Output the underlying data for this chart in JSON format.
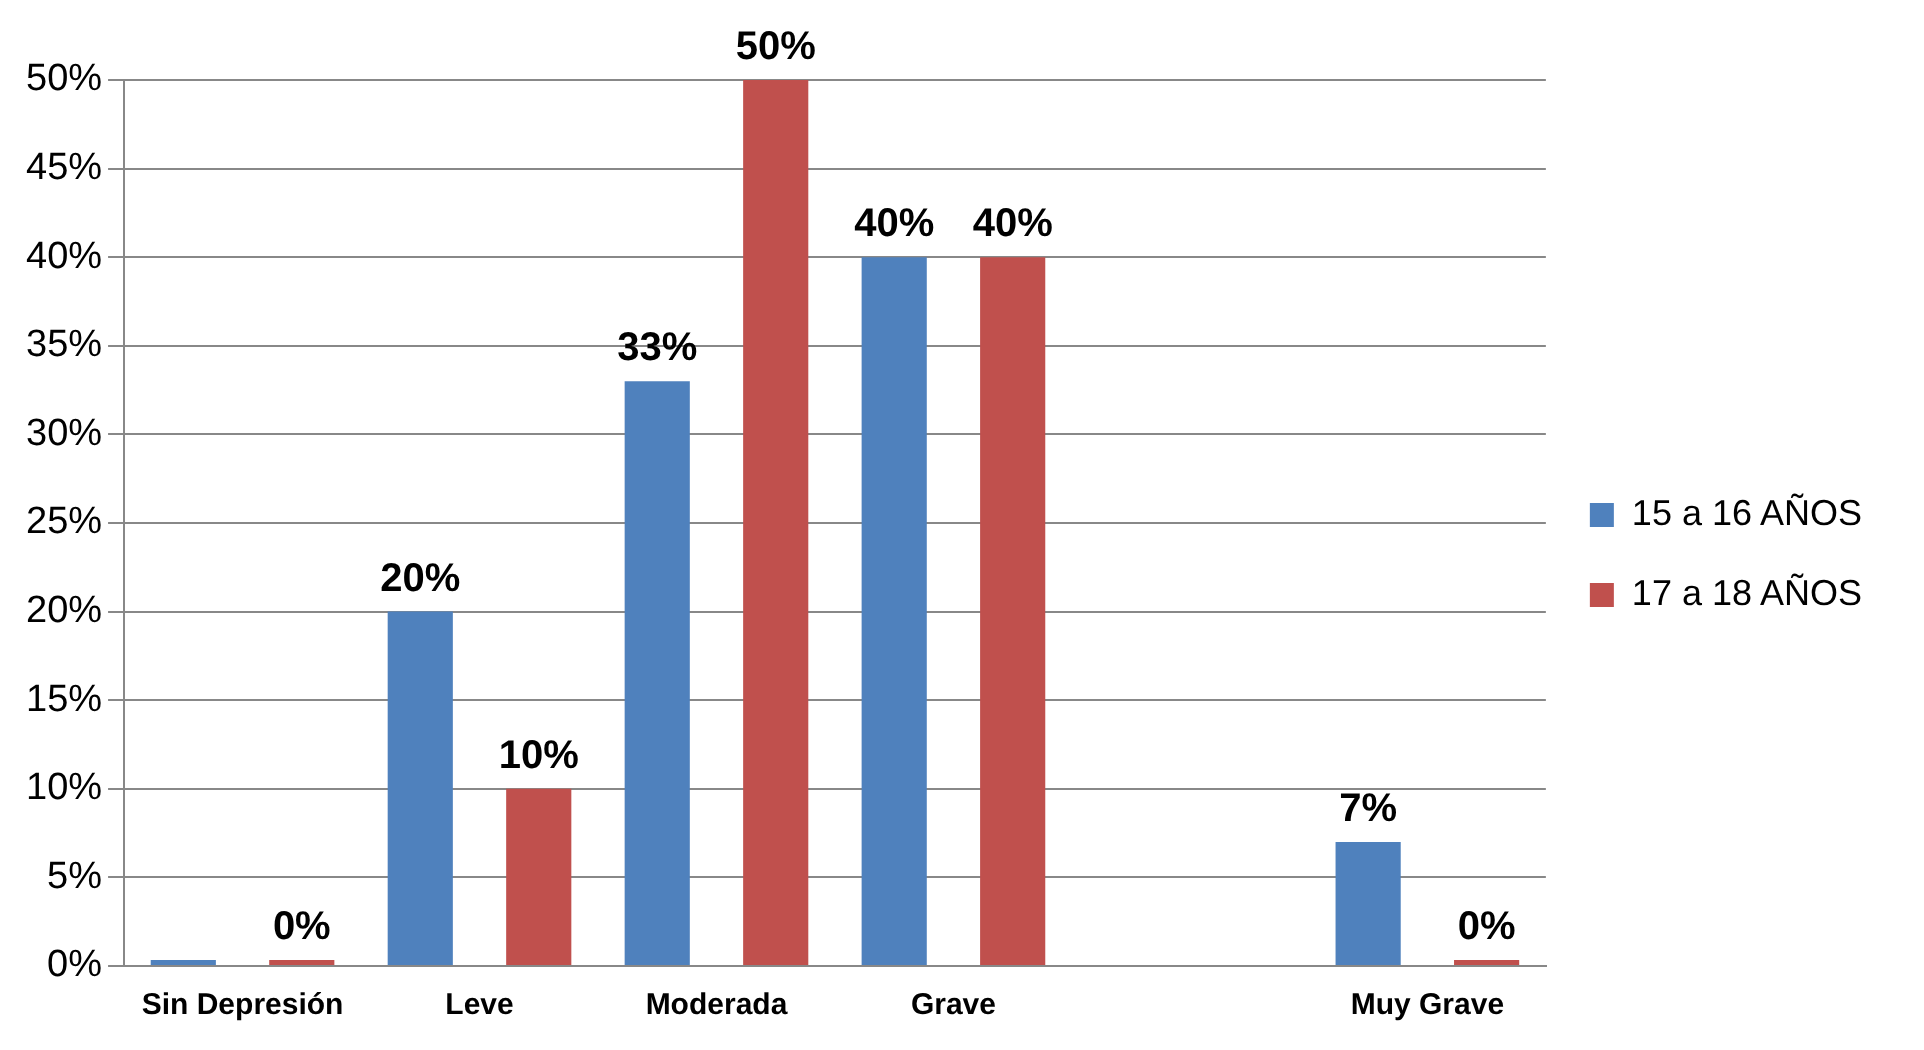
{
  "chart_data": {
    "type": "bar",
    "categories": [
      "Sin Depresión",
      "Leve",
      "Moderada",
      "Grave",
      null,
      "Muy Grave"
    ],
    "series": [
      {
        "name": "15 a 16 AÑOS",
        "color": "#4f81bd",
        "values": [
          0,
          20,
          33,
          40,
          null,
          7
        ],
        "value_labels": [
          null,
          "20%",
          "33%",
          "40%",
          null,
          "7%"
        ]
      },
      {
        "name": "17 a 18 AÑOS",
        "color": "#c0504d",
        "values": [
          0,
          10,
          50,
          40,
          null,
          0
        ],
        "value_labels": [
          "0%",
          "10%",
          "50%",
          "40%",
          null,
          "0%"
        ]
      }
    ],
    "ylim": [
      0,
      50
    ],
    "yticks": [
      {
        "value": 0,
        "label": "0%"
      },
      {
        "value": 5,
        "label": "5%"
      },
      {
        "value": 10,
        "label": "10%"
      },
      {
        "value": 15,
        "label": "15%"
      },
      {
        "value": 20,
        "label": "20%"
      },
      {
        "value": 25,
        "label": "25%"
      },
      {
        "value": 30,
        "label": "30%"
      },
      {
        "value": 35,
        "label": "35%"
      },
      {
        "value": 40,
        "label": "40%"
      },
      {
        "value": 45,
        "label": "45%"
      },
      {
        "value": 50,
        "label": "50%"
      }
    ],
    "grid": "y",
    "legend": "right"
  }
}
